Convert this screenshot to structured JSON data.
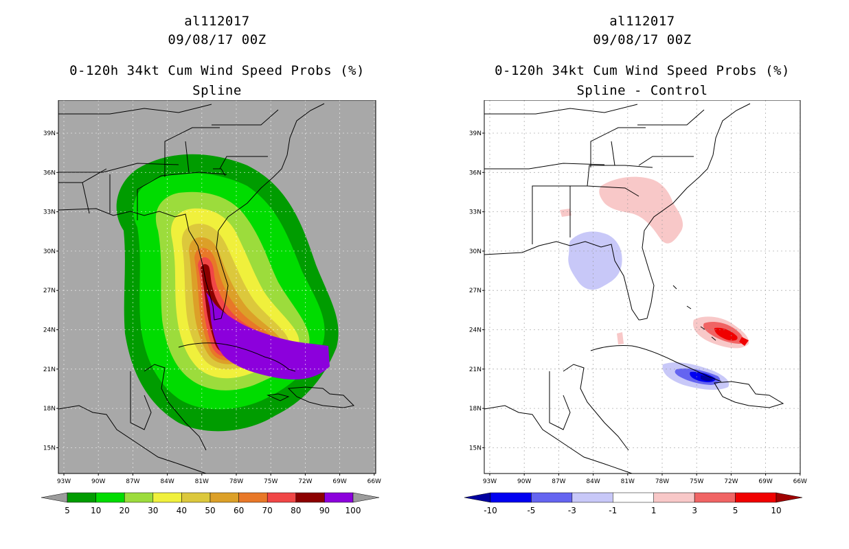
{
  "left_panel": {
    "storm_id": "al112017",
    "datetime": "09/08/17 00Z",
    "product": "0-120h 34kt Cum Wind Speed Probs (%)",
    "subtitle": "Spline",
    "background_color": "#a8a8a8",
    "legend": {
      "labels": [
        "5",
        "10",
        "20",
        "30",
        "40",
        "50",
        "60",
        "70",
        "80",
        "90",
        "100"
      ],
      "colors": [
        "#9c9c9c",
        "#009c00",
        "#00dc00",
        "#9cdc3c",
        "#f0f03c",
        "#dcc83c",
        "#dca028",
        "#e87828",
        "#f04646",
        "#8c0000",
        "#8c00dc",
        "#9c9c9c"
      ]
    }
  },
  "right_panel": {
    "storm_id": "al112017",
    "datetime": "09/08/17 00Z",
    "product": "0-120h 34kt Cum Wind Speed Probs (%)",
    "subtitle": "Spline - Control",
    "background_color": "#ffffff",
    "legend": {
      "labels": [
        "-10",
        "-5",
        "-3",
        "-1",
        "1",
        "3",
        "5",
        "10"
      ],
      "colors": [
        "#0000a0",
        "#0000f0",
        "#6464f0",
        "#c8c8f8",
        "#ffffff",
        "#f8c8c8",
        "#f06464",
        "#f00000",
        "#a00000"
      ]
    }
  },
  "axes": {
    "lat_labels": [
      "39N",
      "36N",
      "33N",
      "30N",
      "27N",
      "24N",
      "21N",
      "18N",
      "15N"
    ],
    "lon_labels": [
      "93W",
      "90W",
      "87W",
      "84W",
      "81W",
      "78W",
      "75W",
      "72W",
      "69W",
      "66W"
    ]
  }
}
